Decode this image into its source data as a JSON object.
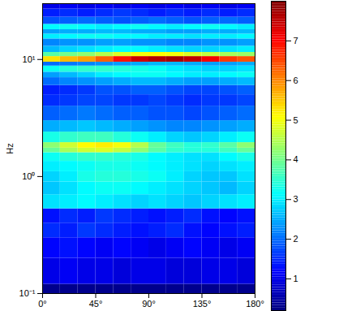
{
  "chart_data": {
    "type": "heatmap",
    "ylabel": "Hz",
    "log": "y",
    "xlim": [
      0,
      180
    ],
    "ylim": [
      0.1,
      30
    ],
    "xticks": [
      {
        "value": 0,
        "label": "0°"
      },
      {
        "value": 45,
        "label": "45°"
      },
      {
        "value": 90,
        "label": "90°"
      },
      {
        "value": 135,
        "label": "135°"
      },
      {
        "value": 180,
        "label": "180°"
      }
    ],
    "yticks": [
      {
        "value": 0.1,
        "label": "10⁻¹"
      },
      {
        "value": 1,
        "label": "10⁰"
      },
      {
        "value": 10,
        "label": "10¹"
      }
    ],
    "x_edges": [
      0,
      15,
      30,
      45,
      60,
      75,
      90,
      105,
      120,
      135,
      150,
      165,
      180
    ],
    "y_edges": [
      0.1,
      0.12,
      0.2,
      0.3,
      0.4,
      0.53,
      0.7,
      0.9,
      1.1,
      1.35,
      1.6,
      1.75,
      1.95,
      2.4,
      3.0,
      4.0,
      5.0,
      6.0,
      7.0,
      7.8,
      8.8,
      9.5,
      10.6,
      11.5,
      13,
      15,
      16.5,
      18,
      20,
      23,
      27,
      30
    ],
    "values": [
      [
        0.3,
        0.3,
        0.3,
        0.3,
        0.3,
        0.3,
        0.3,
        0.3,
        0.3,
        0.3,
        0.3,
        0.3
      ],
      [
        1.0,
        1.1,
        1.0,
        1.0,
        0.9,
        1.0,
        1.0,
        0.9,
        0.9,
        1.0,
        1.0,
        0.9
      ],
      [
        1.2,
        1.3,
        1.2,
        1.1,
        1.2,
        1.1,
        1.0,
        1.1,
        1.2,
        1.1,
        1.0,
        1.1
      ],
      [
        1.5,
        1.4,
        1.6,
        1.5,
        1.4,
        1.3,
        1.4,
        1.5,
        1.3,
        1.2,
        1.3,
        1.4
      ],
      [
        1.3,
        1.5,
        1.4,
        1.6,
        1.5,
        1.4,
        1.3,
        1.4,
        1.5,
        1.3,
        1.2,
        1.3
      ],
      [
        2.9,
        3.0,
        3.1,
        3.0,
        2.9,
        2.8,
        2.9,
        2.8,
        2.7,
        2.8,
        2.9,
        3.0
      ],
      [
        2.7,
        2.9,
        3.1,
        3.2,
        3.2,
        3.1,
        3.0,
        2.9,
        2.8,
        2.7,
        2.6,
        2.8
      ],
      [
        2.8,
        3.0,
        3.3,
        3.4,
        3.4,
        3.3,
        3.2,
        3.0,
        2.8,
        2.7,
        2.7,
        2.9
      ],
      [
        3.0,
        3.1,
        3.2,
        3.3,
        3.3,
        3.2,
        3.1,
        3.0,
        2.9,
        2.8,
        2.9,
        3.0
      ],
      [
        3.2,
        3.4,
        3.5,
        3.5,
        3.4,
        3.3,
        3.1,
        3.0,
        2.9,
        2.9,
        3.1,
        3.3
      ],
      [
        3.9,
        4.4,
        4.7,
        4.8,
        4.6,
        4.2,
        3.8,
        3.5,
        3.4,
        3.4,
        3.6,
        3.9
      ],
      [
        4.2,
        4.7,
        5.1,
        5.2,
        5.0,
        4.5,
        3.9,
        3.6,
        3.4,
        3.5,
        3.8,
        4.2
      ],
      [
        3.3,
        3.5,
        3.6,
        3.6,
        3.4,
        3.2,
        3.0,
        2.8,
        2.7,
        2.8,
        3.0,
        3.2
      ],
      [
        2.5,
        2.6,
        2.7,
        2.6,
        2.5,
        2.4,
        2.3,
        2.2,
        2.2,
        2.3,
        2.4,
        2.5
      ],
      [
        1.9,
        2.0,
        2.1,
        2.0,
        1.9,
        1.9,
        1.8,
        1.8,
        1.7,
        1.8,
        1.9,
        2.0
      ],
      [
        1.5,
        1.6,
        1.7,
        1.7,
        1.6,
        1.6,
        1.7,
        1.6,
        1.5,
        1.6,
        1.6,
        1.7
      ],
      [
        1.4,
        1.5,
        1.6,
        1.8,
        1.8,
        1.9,
        1.9,
        1.8,
        1.7,
        1.7,
        1.8,
        1.9
      ],
      [
        2.0,
        2.2,
        2.3,
        2.4,
        2.5,
        2.6,
        2.6,
        2.5,
        2.4,
        2.4,
        2.5,
        2.6
      ],
      [
        2.4,
        2.6,
        2.8,
        3.0,
        3.1,
        3.2,
        3.2,
        3.1,
        3.0,
        3.0,
        3.1,
        3.2
      ],
      [
        3.2,
        3.4,
        3.5,
        3.5,
        3.4,
        3.3,
        3.2,
        3.0,
        2.9,
        2.8,
        2.8,
        2.9
      ],
      [
        2.0,
        2.1,
        2.2,
        2.3,
        2.4,
        2.5,
        2.6,
        2.6,
        2.5,
        2.4,
        2.4,
        2.5
      ],
      [
        5.3,
        5.6,
        5.8,
        6.3,
        6.9,
        7.4,
        7.6,
        7.7,
        7.5,
        7.1,
        6.6,
        6.4
      ],
      [
        3.8,
        4.0,
        4.2,
        4.5,
        4.8,
        5.0,
        5.1,
        5.0,
        4.8,
        4.6,
        4.4,
        4.3
      ],
      [
        2.6,
        2.8,
        2.9,
        3.0,
        3.1,
        3.1,
        3.0,
        2.9,
        2.8,
        2.8,
        2.9,
        3.0
      ],
      [
        2.2,
        2.3,
        2.3,
        2.4,
        2.4,
        2.3,
        2.3,
        2.2,
        2.2,
        2.3,
        2.3,
        2.4
      ],
      [
        3.0,
        3.1,
        3.2,
        3.2,
        3.1,
        3.1,
        3.0,
        3.0,
        2.9,
        3.0,
        3.0,
        3.1
      ],
      [
        2.4,
        2.5,
        2.5,
        2.6,
        2.6,
        2.5,
        2.5,
        2.4,
        2.4,
        2.5,
        2.5,
        2.6
      ],
      [
        3.1,
        3.2,
        3.1,
        3.0,
        3.1,
        3.2,
        3.1,
        3.0,
        3.1,
        3.2,
        3.1,
        3.0
      ],
      [
        1.8,
        1.9,
        2.0,
        1.9,
        1.8,
        1.9,
        2.0,
        1.9,
        1.8,
        1.9,
        2.0,
        1.9
      ],
      [
        1.4,
        1.5,
        1.4,
        1.5,
        1.6,
        1.5,
        1.4,
        1.5,
        1.4,
        1.5,
        1.4,
        1.5
      ],
      [
        1.0,
        1.1,
        1.0,
        1.1,
        1.0,
        1.1,
        1.0,
        1.1,
        1.0,
        1.1,
        1.0,
        1.1
      ]
    ],
    "colorbar_range": [
      0.2,
      8.0
    ],
    "colorbar_ticks": [
      1,
      2,
      3,
      4,
      5,
      6,
      7
    ]
  }
}
